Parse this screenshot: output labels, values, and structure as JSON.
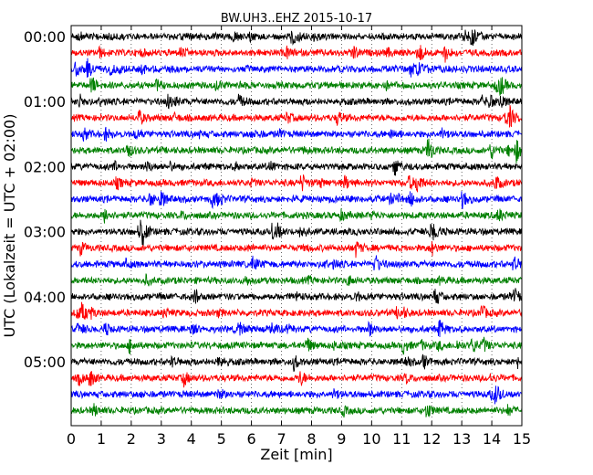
{
  "chart_data": {
    "type": "line",
    "title": "BW.UH3..EHZ 2015-10-17",
    "xlabel": "Zeit  [min]",
    "ylabel": "UTC (Lokalzeit = UTC + 02:00)",
    "xlim": [
      0,
      15
    ],
    "x_ticks": [
      "0",
      "1",
      "2",
      "3",
      "4",
      "5",
      "6",
      "7",
      "8",
      "9",
      "10",
      "11",
      "12",
      "13",
      "14",
      "15"
    ],
    "y_ticks": [
      "00:00",
      "01:00",
      "02:00",
      "03:00",
      "04:00",
      "05:00"
    ],
    "trace_interval_minutes": 15,
    "trace_count": 24,
    "trace_colors": [
      "#000000",
      "#ff0000",
      "#0000ff",
      "#008000"
    ],
    "grid": true
  }
}
